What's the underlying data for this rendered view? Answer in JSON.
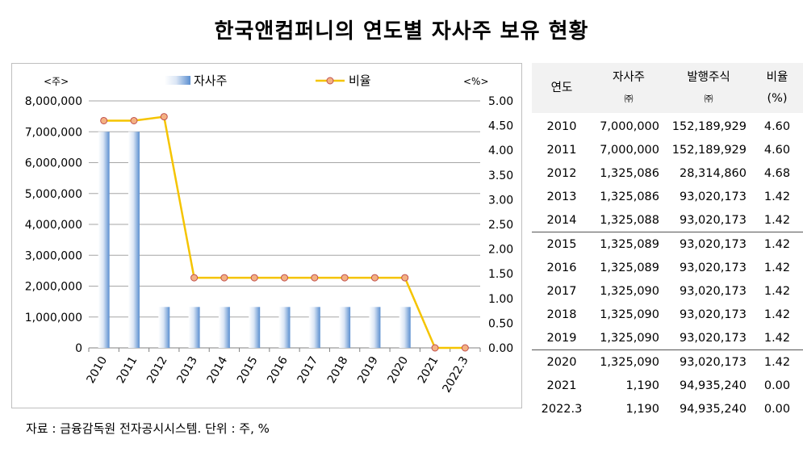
{
  "title": "한국앤컴퍼니의 연도별 자사주 보유 현황",
  "source": "자료 : 금융감독원 전자공시시스템. 단위 : 주, %",
  "chart_data": {
    "type": "bar+line",
    "categories": [
      "2010",
      "2011",
      "2012",
      "2013",
      "2014",
      "2015",
      "2016",
      "2017",
      "2018",
      "2019",
      "2020",
      "2021",
      "2022.3"
    ],
    "left_axis_label": "<주>",
    "right_axis_label": "<%>",
    "left_ylim": [
      0,
      8000000
    ],
    "right_ylim": [
      0,
      5
    ],
    "left_ticks": [
      "8,000,000",
      "7,000,000",
      "6,000,000",
      "5,000,000",
      "4,000,000",
      "3,000,000",
      "2,000,000",
      "1,000,000",
      "0"
    ],
    "right_ticks": [
      "5.00",
      "4.50",
      "4.00",
      "3.50",
      "3.00",
      "2.50",
      "2.00",
      "1.50",
      "1.00",
      "0.50",
      "0.00"
    ],
    "grid": true,
    "legend_position": "top",
    "series": [
      {
        "name": "자사주",
        "type": "bar",
        "axis": "left",
        "color": "#5b8fd0",
        "values": [
          7000000,
          7000000,
          1325086,
          1325086,
          1325088,
          1325089,
          1325089,
          1325090,
          1325090,
          1325090,
          1325090,
          1190,
          1190
        ]
      },
      {
        "name": "비율",
        "type": "line",
        "axis": "right",
        "color": "#f5c400",
        "values": [
          4.6,
          4.6,
          4.68,
          1.42,
          1.42,
          1.42,
          1.42,
          1.42,
          1.42,
          1.42,
          1.42,
          0.0,
          0.0
        ]
      }
    ]
  },
  "table": {
    "headers": [
      {
        "top": "연도",
        "bottom": ""
      },
      {
        "top": "자사주",
        "bottom": "㈜"
      },
      {
        "top": "발행주식",
        "bottom": "㈜"
      },
      {
        "top": "비율",
        "bottom": "(%)"
      }
    ],
    "rows": [
      [
        "2010",
        "7,000,000",
        "152,189,929",
        "4.60"
      ],
      [
        "2011",
        "7,000,000",
        "152,189,929",
        "4.60"
      ],
      [
        "2012",
        "1,325,086",
        "28,314,860",
        "4.68"
      ],
      [
        "2013",
        "1,325,086",
        "93,020,173",
        "1.42"
      ],
      [
        "2014",
        "1,325,088",
        "93,020,173",
        "1.42"
      ],
      [
        "2015",
        "1,325,089",
        "93,020,173",
        "1.42"
      ],
      [
        "2016",
        "1,325,089",
        "93,020,173",
        "1.42"
      ],
      [
        "2017",
        "1,325,090",
        "93,020,173",
        "1.42"
      ],
      [
        "2018",
        "1,325,090",
        "93,020,173",
        "1.42"
      ],
      [
        "2019",
        "1,325,090",
        "93,020,173",
        "1.42"
      ],
      [
        "2020",
        "1,325,090",
        "93,020,173",
        "1.42"
      ],
      [
        "2021",
        "1,190",
        "94,935,240",
        "0.00"
      ],
      [
        "2022.3",
        "1,190",
        "94,935,240",
        "0.00"
      ]
    ]
  }
}
